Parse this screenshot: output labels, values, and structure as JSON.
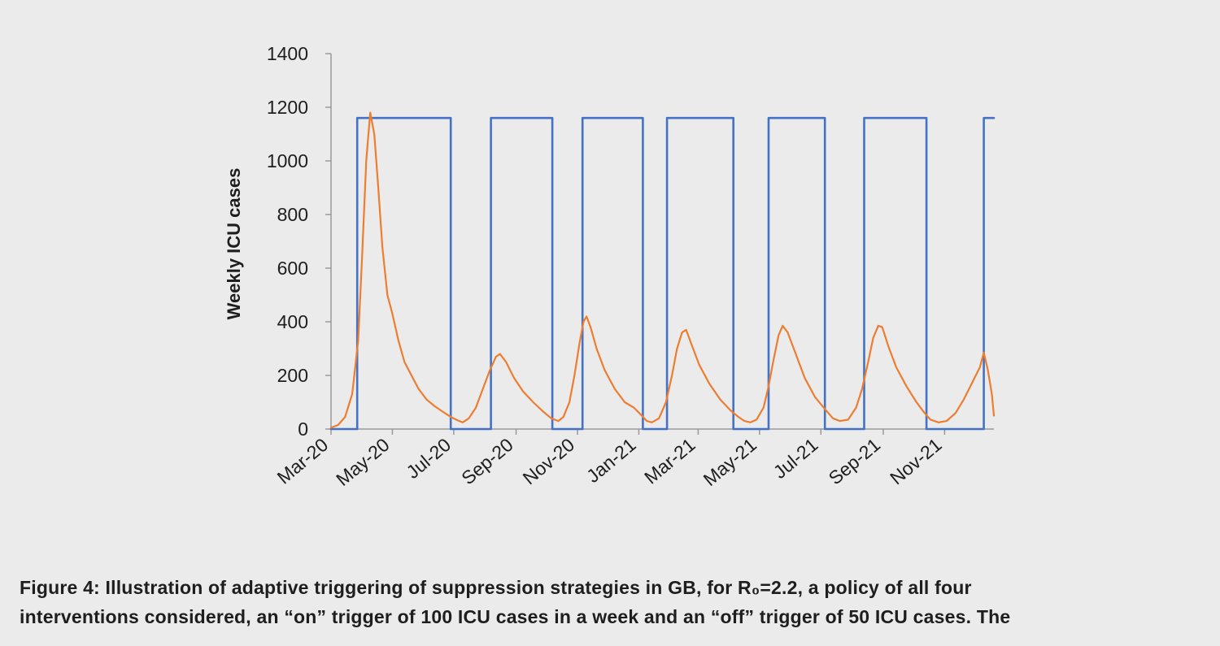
{
  "chart_data": {
    "type": "line",
    "ylabel": "Weekly ICU cases",
    "xlabel": "",
    "title": "",
    "ylim": [
      0,
      1400
    ],
    "yticks": [
      0,
      200,
      400,
      600,
      800,
      1000,
      1200,
      1400
    ],
    "xlim": [
      "2020-03-01",
      "2021-12-20"
    ],
    "xtick_labels": [
      "Mar-20",
      "May-20",
      "Jul-20",
      "Sep-20",
      "Nov-20",
      "Jan-21",
      "Mar-21",
      "May-21",
      "Jul-21",
      "Sep-21",
      "Nov-21"
    ],
    "xtick_dates": [
      "2020-03-01",
      "2020-05-01",
      "2020-07-01",
      "2020-09-01",
      "2020-11-01",
      "2021-01-01",
      "2021-03-01",
      "2021-05-01",
      "2021-07-01",
      "2021-09-01",
      "2021-11-01"
    ],
    "grid": false,
    "legend": "none",
    "series": [
      {
        "color": "#4472c4",
        "shape": "step",
        "level": 1160,
        "on_periods": [
          [
            "2020-03-27",
            "2020-06-28"
          ],
          [
            "2020-08-07",
            "2020-10-07"
          ],
          [
            "2020-11-06",
            "2021-01-05"
          ],
          [
            "2021-01-29",
            "2021-04-05"
          ],
          [
            "2021-05-10",
            "2021-07-05"
          ],
          [
            "2021-08-13",
            "2021-10-14"
          ],
          [
            "2021-12-10",
            "2021-12-20"
          ]
        ],
        "points": [
          [
            "2020-03-01",
            0
          ],
          [
            "2020-03-27",
            0
          ],
          [
            "2020-03-27",
            1160
          ],
          [
            "2020-06-28",
            1160
          ],
          [
            "2020-06-28",
            0
          ],
          [
            "2020-08-07",
            0
          ],
          [
            "2020-08-07",
            1160
          ],
          [
            "2020-10-07",
            1160
          ],
          [
            "2020-10-07",
            0
          ],
          [
            "2020-11-06",
            0
          ],
          [
            "2020-11-06",
            1160
          ],
          [
            "2021-01-05",
            1160
          ],
          [
            "2021-01-05",
            0
          ],
          [
            "2021-01-29",
            0
          ],
          [
            "2021-01-29",
            1160
          ],
          [
            "2021-04-05",
            1160
          ],
          [
            "2021-04-05",
            0
          ],
          [
            "2021-05-10",
            0
          ],
          [
            "2021-05-10",
            1160
          ],
          [
            "2021-07-05",
            1160
          ],
          [
            "2021-07-05",
            0
          ],
          [
            "2021-08-13",
            0
          ],
          [
            "2021-08-13",
            1160
          ],
          [
            "2021-10-14",
            1160
          ],
          [
            "2021-10-14",
            0
          ],
          [
            "2021-12-10",
            0
          ],
          [
            "2021-12-10",
            1160
          ],
          [
            "2021-12-20",
            1160
          ]
        ]
      },
      {
        "color": "#ed7d31",
        "shape": "line",
        "points": [
          [
            "2020-03-01",
            5
          ],
          [
            "2020-03-08",
            15
          ],
          [
            "2020-03-15",
            45
          ],
          [
            "2020-03-22",
            130
          ],
          [
            "2020-03-28",
            330
          ],
          [
            "2020-04-01",
            650
          ],
          [
            "2020-04-05",
            1000
          ],
          [
            "2020-04-09",
            1180
          ],
          [
            "2020-04-13",
            1100
          ],
          [
            "2020-04-17",
            900
          ],
          [
            "2020-04-21",
            680
          ],
          [
            "2020-04-26",
            500
          ],
          [
            "2020-05-01",
            430
          ],
          [
            "2020-05-07",
            330
          ],
          [
            "2020-05-13",
            250
          ],
          [
            "2020-05-20",
            200
          ],
          [
            "2020-05-27",
            150
          ],
          [
            "2020-06-04",
            110
          ],
          [
            "2020-06-12",
            85
          ],
          [
            "2020-06-20",
            65
          ],
          [
            "2020-06-28",
            45
          ],
          [
            "2020-07-05",
            32
          ],
          [
            "2020-07-10",
            25
          ],
          [
            "2020-07-16",
            40
          ],
          [
            "2020-07-23",
            80
          ],
          [
            "2020-07-30",
            150
          ],
          [
            "2020-08-06",
            220
          ],
          [
            "2020-08-12",
            270
          ],
          [
            "2020-08-16",
            280
          ],
          [
            "2020-08-22",
            250
          ],
          [
            "2020-08-30",
            190
          ],
          [
            "2020-09-08",
            140
          ],
          [
            "2020-09-18",
            100
          ],
          [
            "2020-09-28",
            65
          ],
          [
            "2020-10-06",
            40
          ],
          [
            "2020-10-13",
            30
          ],
          [
            "2020-10-18",
            45
          ],
          [
            "2020-10-24",
            100
          ],
          [
            "2020-10-29",
            200
          ],
          [
            "2020-11-03",
            320
          ],
          [
            "2020-11-07",
            400
          ],
          [
            "2020-11-10",
            420
          ],
          [
            "2020-11-14",
            380
          ],
          [
            "2020-11-20",
            300
          ],
          [
            "2020-11-28",
            220
          ],
          [
            "2020-12-08",
            150
          ],
          [
            "2020-12-18",
            100
          ],
          [
            "2020-12-27",
            80
          ],
          [
            "2021-01-04",
            50
          ],
          [
            "2021-01-09",
            30
          ],
          [
            "2021-01-14",
            25
          ],
          [
            "2021-01-21",
            40
          ],
          [
            "2021-01-28",
            100
          ],
          [
            "2021-02-03",
            200
          ],
          [
            "2021-02-08",
            300
          ],
          [
            "2021-02-13",
            360
          ],
          [
            "2021-02-17",
            370
          ],
          [
            "2021-02-22",
            320
          ],
          [
            "2021-03-02",
            240
          ],
          [
            "2021-03-12",
            170
          ],
          [
            "2021-03-23",
            110
          ],
          [
            "2021-04-02",
            70
          ],
          [
            "2021-04-10",
            45
          ],
          [
            "2021-04-16",
            30
          ],
          [
            "2021-04-22",
            25
          ],
          [
            "2021-04-28",
            35
          ],
          [
            "2021-05-05",
            80
          ],
          [
            "2021-05-10",
            160
          ],
          [
            "2021-05-15",
            260
          ],
          [
            "2021-05-20",
            350
          ],
          [
            "2021-05-24",
            385
          ],
          [
            "2021-05-29",
            360
          ],
          [
            "2021-06-06",
            280
          ],
          [
            "2021-06-15",
            190
          ],
          [
            "2021-06-25",
            120
          ],
          [
            "2021-07-06",
            70
          ],
          [
            "2021-07-13",
            40
          ],
          [
            "2021-07-20",
            30
          ],
          [
            "2021-07-28",
            35
          ],
          [
            "2021-08-05",
            80
          ],
          [
            "2021-08-11",
            150
          ],
          [
            "2021-08-17",
            250
          ],
          [
            "2021-08-22",
            340
          ],
          [
            "2021-08-27",
            385
          ],
          [
            "2021-08-31",
            380
          ],
          [
            "2021-09-06",
            310
          ],
          [
            "2021-09-14",
            230
          ],
          [
            "2021-09-24",
            160
          ],
          [
            "2021-10-04",
            100
          ],
          [
            "2021-10-12",
            60
          ],
          [
            "2021-10-18",
            35
          ],
          [
            "2021-10-26",
            25
          ],
          [
            "2021-11-03",
            30
          ],
          [
            "2021-11-12",
            60
          ],
          [
            "2021-11-20",
            110
          ],
          [
            "2021-11-28",
            170
          ],
          [
            "2021-12-06",
            230
          ],
          [
            "2021-12-10",
            285
          ],
          [
            "2021-12-14",
            220
          ],
          [
            "2021-12-18",
            130
          ],
          [
            "2021-12-20",
            50
          ]
        ]
      }
    ]
  },
  "caption": {
    "line1": "Figure 4: Illustration of adaptive triggering of suppression strategies in GB, for R₀=2.2, a policy of all four",
    "line2": "interventions considered, an “on” trigger of 100 ICU cases in a week and an “off” trigger of 50 ICU cases.  The"
  }
}
